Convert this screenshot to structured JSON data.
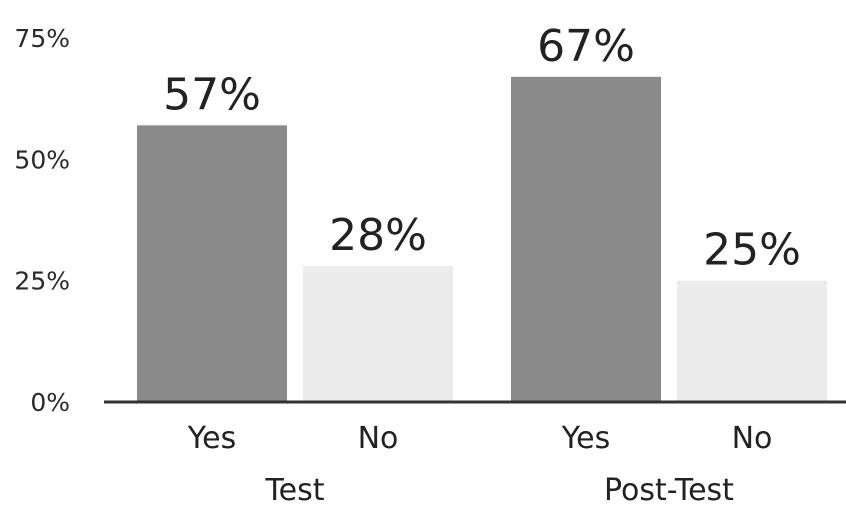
{
  "chart_data": {
    "type": "bar",
    "groups": [
      {
        "name": "Test",
        "bars": [
          {
            "category": "Yes",
            "value": 57,
            "label": "57%"
          },
          {
            "category": "No",
            "value": 28,
            "label": "28%"
          }
        ]
      },
      {
        "name": "Post-Test",
        "bars": [
          {
            "category": "Yes",
            "value": 67,
            "label": "67%"
          },
          {
            "category": "No",
            "value": 25,
            "label": "25%"
          }
        ]
      }
    ],
    "yticks": [
      {
        "value": 0,
        "label": "0%"
      },
      {
        "value": 25,
        "label": "25%"
      },
      {
        "value": 50,
        "label": "50%"
      },
      {
        "value": 75,
        "label": "75%"
      }
    ],
    "ylim": [
      0,
      75
    ],
    "grid": false,
    "legend": "none",
    "colors": {
      "Yes": "#8a8a8a",
      "No": "#ececec",
      "axis": "#333333"
    }
  }
}
